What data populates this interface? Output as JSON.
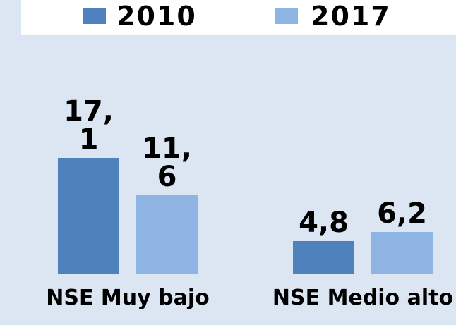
{
  "chart_data": {
    "type": "bar",
    "categories": [
      "NSE Muy bajo",
      "NSE Medio alto"
    ],
    "series": [
      {
        "name": "2010",
        "color": "#4f81bd",
        "values": [
          17.1,
          4.8
        ],
        "value_labels": [
          "17,1",
          "4,8"
        ]
      },
      {
        "name": "2017",
        "color": "#8eb4e3",
        "values": [
          11.6,
          6.2
        ],
        "value_labels": [
          "11,6",
          "6,2"
        ]
      }
    ]
  }
}
